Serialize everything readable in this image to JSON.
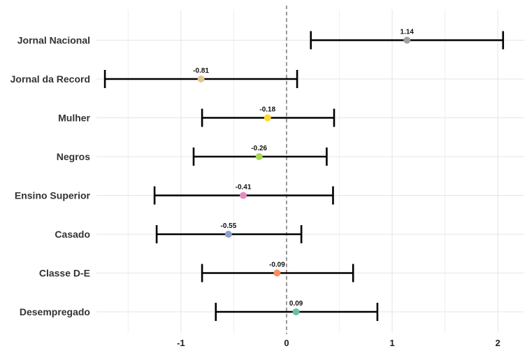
{
  "chart_data": {
    "type": "forest",
    "title": "",
    "xlabel": "",
    "ylabel": "",
    "xlim": [
      -1.8,
      2.25
    ],
    "xticks": [
      -1,
      0,
      1,
      2
    ],
    "xtick_labels": [
      "-1",
      "0",
      "1",
      "2"
    ],
    "reference_line": 0,
    "grid": true,
    "legend": "none",
    "items": [
      {
        "label": "Jornal Nacional",
        "estimate": 1.14,
        "estimate_label": "1.14",
        "ci_low": 0.23,
        "ci_high": 2.05,
        "color": "#A0A0A0"
      },
      {
        "label": "Jornal da Record",
        "estimate": -0.81,
        "estimate_label": "-0.81",
        "ci_low": -1.72,
        "ci_high": 0.1,
        "color": "#E5C494"
      },
      {
        "label": "Mulher",
        "estimate": -0.18,
        "estimate_label": "-0.18",
        "ci_low": -0.8,
        "ci_high": 0.45,
        "color": "#FFD92F"
      },
      {
        "label": "Negros",
        "estimate": -0.26,
        "estimate_label": "-0.26",
        "ci_low": -0.88,
        "ci_high": 0.38,
        "color": "#A6D854"
      },
      {
        "label": "Ensino Superior",
        "estimate": -0.41,
        "estimate_label": "-0.41",
        "ci_low": -1.25,
        "ci_high": 0.44,
        "color": "#E78AC3"
      },
      {
        "label": "Casado",
        "estimate": -0.55,
        "estimate_label": "-0.55",
        "ci_low": -1.23,
        "ci_high": 0.14,
        "color": "#8DA0CB"
      },
      {
        "label": "Classe D-E",
        "estimate": -0.09,
        "estimate_label": "-0.09",
        "ci_low": -0.8,
        "ci_high": 0.63,
        "color": "#FC8D62"
      },
      {
        "label": "Desempregado",
        "estimate": 0.09,
        "estimate_label": "0.09",
        "ci_low": -0.67,
        "ci_high": 0.86,
        "color": "#66C2A5"
      }
    ]
  }
}
